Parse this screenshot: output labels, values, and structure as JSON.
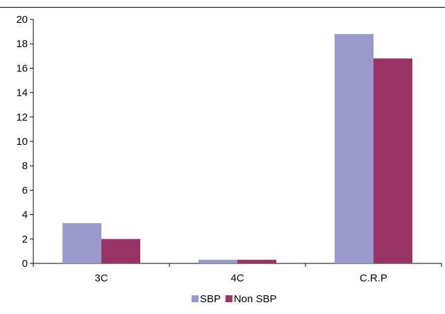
{
  "chart_data": {
    "type": "bar",
    "categories": [
      "3C",
      "4C",
      "C.R.P"
    ],
    "series": [
      {
        "name": "SBP",
        "values": [
          3.3,
          0.3,
          18.8
        ],
        "color": "#9999cc"
      },
      {
        "name": "Non SBP",
        "values": [
          2.0,
          0.3,
          16.8
        ],
        "color": "#993366"
      }
    ],
    "ylim": [
      0,
      20
    ],
    "yticks": [
      0,
      2,
      4,
      6,
      8,
      10,
      12,
      14,
      16,
      18,
      20
    ],
    "grid": false,
    "legend_position": "bottom-center"
  }
}
